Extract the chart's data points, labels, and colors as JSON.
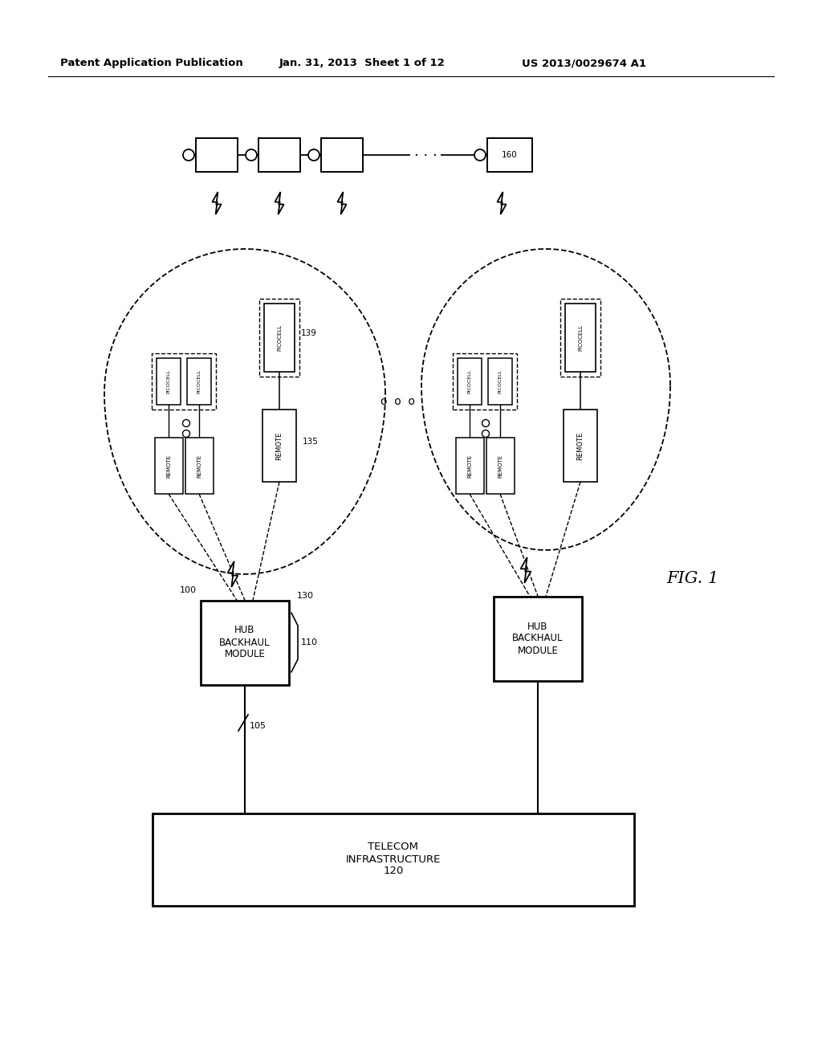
{
  "bg_color": "#ffffff",
  "header_text": "Patent Application Publication",
  "header_date": "Jan. 31, 2013  Sheet 1 of 12",
  "header_patent": "US 2013/0029674 A1",
  "fig_label": "FIG. 1",
  "label_100": "100",
  "label_105": "105",
  "label_110": "110",
  "label_120": "120",
  "label_130": "130",
  "label_135": "135",
  "label_139": "139",
  "label_160": "160",
  "telecom_text": "TELECOM\nINFRASTRUCTURE\n120",
  "hub_text": "HUB\nBACKHAUL\nMODULE"
}
